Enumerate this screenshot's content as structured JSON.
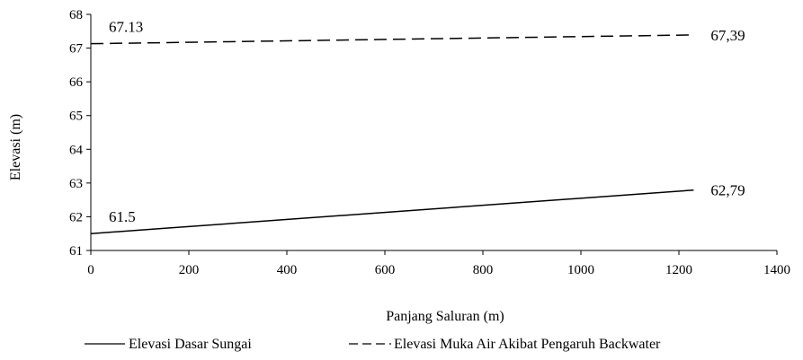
{
  "chart_data": {
    "type": "line",
    "title": "",
    "xlabel": "Panjang Saluran (m)",
    "ylabel": "Elevasi (m)",
    "xlim": [
      0,
      1400
    ],
    "ylim": [
      61,
      68
    ],
    "xticks": [
      "0",
      "200",
      "400",
      "600",
      "800",
      "1000",
      "1200",
      "1400"
    ],
    "yticks": [
      "61",
      "62",
      "63",
      "64",
      "65",
      "66",
      "67",
      "68"
    ],
    "grid": false,
    "legend_position": "bottom",
    "series": [
      {
        "name": "Elevasi Dasar Sungai",
        "style": "solid",
        "color": "#000000",
        "x": [
          0,
          1230
        ],
        "y": [
          61.5,
          62.79
        ],
        "labels": [
          "61.5",
          "62,79"
        ]
      },
      {
        "name": "Elevasi Muka Air Akibat Pengaruh Backwater",
        "style": "dashed",
        "color": "#000000",
        "x": [
          0,
          1230
        ],
        "y": [
          67.13,
          67.39
        ],
        "labels": [
          "67.13",
          "67,39"
        ]
      }
    ]
  }
}
